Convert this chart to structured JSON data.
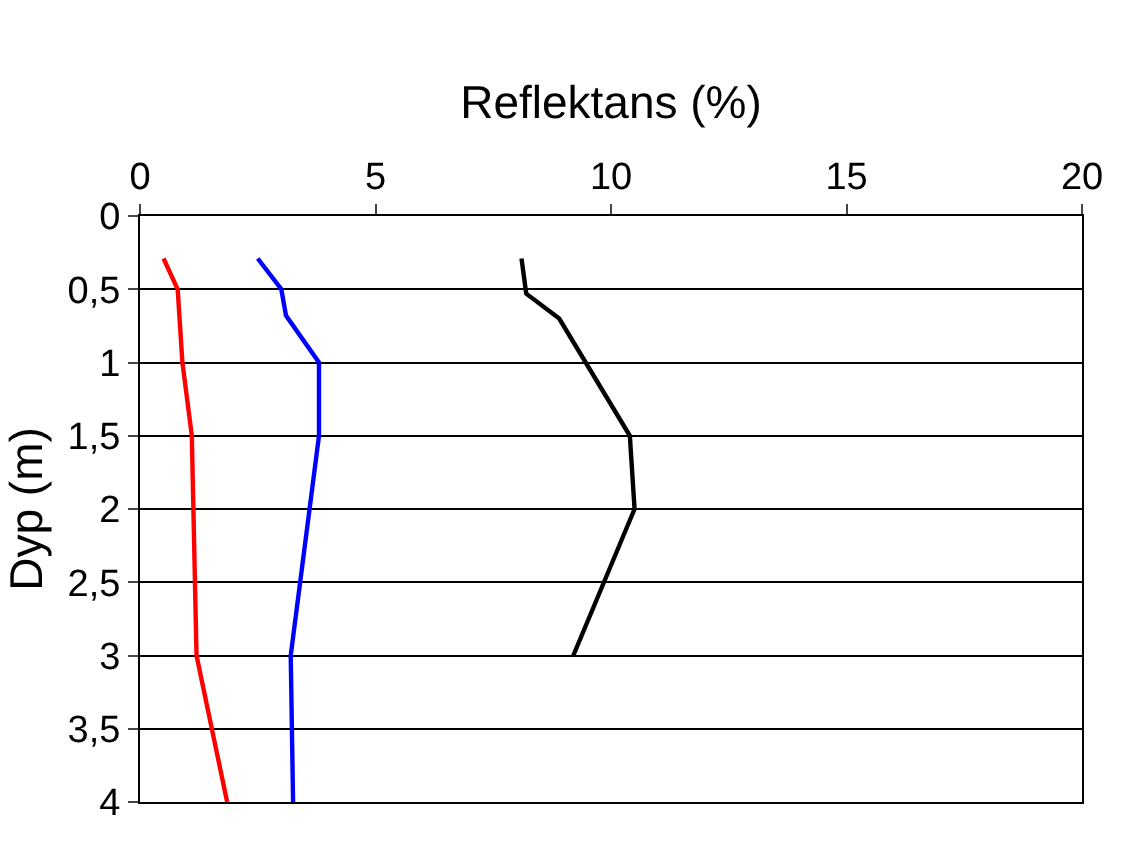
{
  "chart_data": {
    "type": "line",
    "xlabel": "Reflektans (%)",
    "ylabel": "Dyp (m)",
    "xlim": [
      0,
      20
    ],
    "xticks": [
      0,
      5,
      10,
      15,
      20
    ],
    "ylim": [
      4,
      0
    ],
    "yticks": [
      0,
      {
        "value": 0.5,
        "label": "0,5"
      },
      1,
      {
        "value": 1.5,
        "label": "1,5"
      },
      2,
      {
        "value": 2.5,
        "label": "2,5"
      },
      3,
      {
        "value": 3.5,
        "label": "3,5"
      },
      4
    ],
    "grid": "y",
    "line_style": "solid",
    "marker": "none",
    "series": [
      {
        "color": "#ff0000",
        "x": [
          0.5,
          0.8,
          0.9,
          1.1,
          1.2,
          1.85
        ],
        "values": [
          0.29,
          0.5,
          1.0,
          1.5,
          3.0,
          4.0
        ]
      },
      {
        "color": "#0000ff",
        "x": [
          2.5,
          3.0,
          3.1,
          3.8,
          3.8,
          3.2,
          3.25
        ],
        "values": [
          0.29,
          0.5,
          0.68,
          1.0,
          1.5,
          3.0,
          4.0
        ]
      },
      {
        "color": "#000000",
        "x": [
          8.1,
          8.2,
          8.9,
          10.4,
          10.5,
          9.2
        ],
        "values": [
          0.29,
          0.53,
          0.7,
          1.5,
          2.0,
          3.0
        ]
      }
    ]
  }
}
